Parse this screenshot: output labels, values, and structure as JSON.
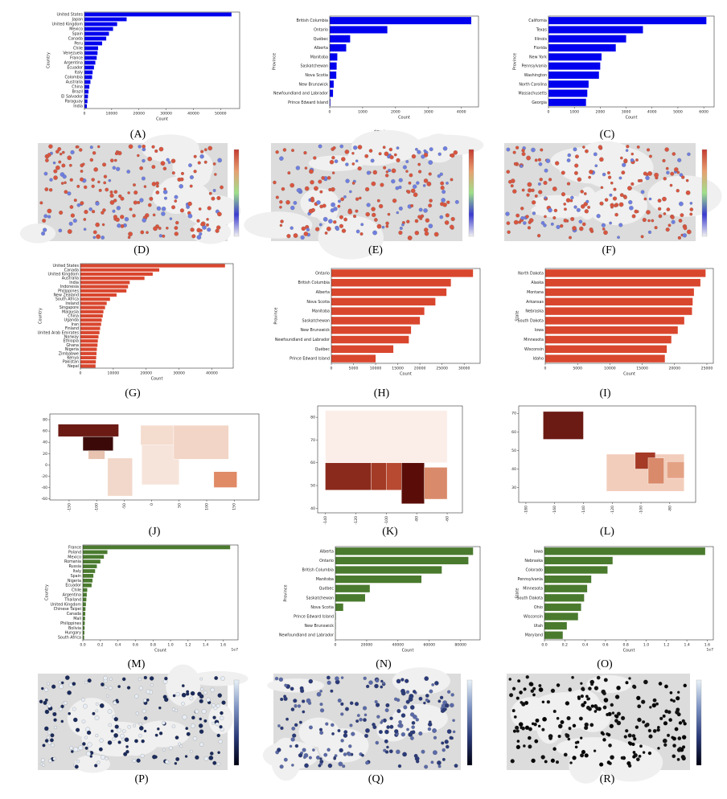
{
  "chart_data": [
    {
      "type": "bar",
      "caption": "(A)",
      "xlabel": "Count",
      "ylabel": "Country",
      "color": "#0000ee",
      "categories": [
        "United States",
        "Japan",
        "United Kingdom",
        "Mexico",
        "Spain",
        "Canada",
        "Peru",
        "Chile",
        "Venezuela",
        "France",
        "Argentina",
        "Ecuador",
        "Italy",
        "Colombia",
        "Australia",
        "China",
        "Brazil",
        "El Salvador",
        "Paraguay",
        "India"
      ],
      "values": [
        54000,
        15500,
        12000,
        10500,
        9000,
        8000,
        6500,
        5000,
        4800,
        4500,
        4000,
        3500,
        3000,
        2800,
        2200,
        1800,
        1500,
        1300,
        1100,
        900
      ],
      "xlim": [
        0,
        57000
      ],
      "xticks": [
        0,
        10000,
        20000,
        30000,
        40000,
        50000
      ]
    },
    {
      "type": "bar",
      "caption": "(B)",
      "xlabel": "Count",
      "ylabel": "Province",
      "color": "#0000ee",
      "categories": [
        "British Columbia",
        "Ontario",
        "Québec",
        "Alberta",
        "Manitoba",
        "Saskatchewan",
        "Nova Scotia",
        "New Brunswick",
        "Newfoundland and Labrador",
        "Prince Edward Island"
      ],
      "values": [
        4300,
        1750,
        620,
        500,
        230,
        210,
        200,
        120,
        100,
        20
      ],
      "xlim": [
        0,
        4520
      ],
      "xticks": [
        0,
        1000,
        2000,
        3000,
        4000
      ]
    },
    {
      "type": "bar",
      "caption": "(C)",
      "xlabel": "Count",
      "ylabel": "Province",
      "color": "#0000ee",
      "categories": [
        "California",
        "Texas",
        "Illinois",
        "Florida",
        "New York",
        "Pennsylvania",
        "Washington",
        "North Carolina",
        "Massachusetts",
        "Georgia"
      ],
      "values": [
        6100,
        3650,
        3000,
        2600,
        2050,
        2000,
        1950,
        1550,
        1500,
        1450
      ],
      "xlim": [
        0,
        6400
      ],
      "xticks": [
        0,
        1000,
        2000,
        3000,
        4000,
        5000,
        6000
      ]
    },
    {
      "type": "map",
      "caption": "(D)",
      "dot_colors": [
        "#d9553f",
        "#d9553f",
        "#d9553f",
        "#6f7fe0"
      ],
      "colorbar_colors": [
        "#f2f2f2",
        "#3a3ad0",
        "#9ee08a",
        "#e8a070",
        "#c43b30"
      ]
    },
    {
      "type": "map",
      "caption": "(E)",
      "dot_colors": [
        "#d9553f",
        "#d9553f",
        "#6f7fe0"
      ],
      "colorbar_colors": [
        "#f2f2f2",
        "#3a3ad0",
        "#9ee08a",
        "#e8a070",
        "#c43b30"
      ]
    },
    {
      "type": "map",
      "caption": "(F)",
      "dot_colors": [
        "#d9553f",
        "#d9553f",
        "#d9553f",
        "#6f7fe0"
      ],
      "colorbar_colors": [
        "#f2f2f2",
        "#3a3ad0",
        "#9ee08a",
        "#e8a070",
        "#c43b30"
      ]
    },
    {
      "type": "bar",
      "caption": "(G)",
      "xlabel": "Count",
      "ylabel": "Country",
      "color": "#d9462e",
      "categories": [
        "United States",
        "Canada",
        "United Kingdom",
        "Australia",
        "India",
        "Indonesia",
        "Philippines",
        "New Zealand",
        "South Africa",
        "Ireland",
        "Singapore",
        "Malaysia",
        "China",
        "Uganda",
        "Iran",
        "Finland",
        "United Arab Emirates",
        "Norway",
        "Ethiopia",
        "Ghana",
        "Nigeria",
        "Zimbabwe",
        "Kenya",
        "Pakistan",
        "Nepal"
      ],
      "values": [
        44000,
        24000,
        22000,
        19500,
        15000,
        14500,
        14000,
        11000,
        9000,
        8000,
        7500,
        7000,
        6800,
        6500,
        6300,
        6000,
        5800,
        5500,
        5300,
        5200,
        5000,
        4900,
        4800,
        4700,
        4600
      ],
      "xlim": [
        0,
        46500
      ],
      "xticks": [
        0,
        10000,
        20000,
        30000,
        40000
      ]
    },
    {
      "type": "bar",
      "caption": "(H)",
      "xlabel": "Count",
      "ylabel": "Province",
      "color": "#d9462e",
      "categories": [
        "Ontario",
        "British Columbia",
        "Alberta",
        "Nova Scotia",
        "Manitoba",
        "Saskatchewan",
        "New Brunswick",
        "Newfoundland and Labrador",
        "Québec",
        "Prince Edward Island"
      ],
      "values": [
        32000,
        27000,
        26000,
        23500,
        21000,
        20000,
        18000,
        17500,
        14000,
        10000
      ],
      "xlim": [
        0,
        33600
      ],
      "xticks": [
        0,
        5000,
        10000,
        15000,
        20000,
        25000,
        30000
      ]
    },
    {
      "type": "bar",
      "caption": "(I)",
      "xlabel": "Count",
      "ylabel": "State",
      "color": "#d9462e",
      "categories": [
        "North Dakota",
        "Alaska",
        "Montana",
        "Arkansas",
        "Nebraska",
        "South Dakota",
        "Iowa",
        "Minnesota",
        "Wisconsin",
        "Idaho"
      ],
      "values": [
        24800,
        24000,
        23000,
        22800,
        22700,
        21500,
        20500,
        19500,
        18800,
        18500
      ],
      "xlim": [
        0,
        26000
      ],
      "xticks": [
        0,
        5000,
        10000,
        15000,
        20000,
        25000
      ]
    },
    {
      "type": "choropleth",
      "caption": "(J)",
      "xlim": [
        -185,
        195
      ],
      "ylim": [
        -62,
        90
      ],
      "xticks": [
        -150,
        -100,
        -50,
        0,
        50,
        100,
        150
      ],
      "yticks": [
        -60,
        -40,
        -20,
        0,
        20,
        40,
        60,
        80
      ]
    },
    {
      "type": "choropleth",
      "caption": "(K)",
      "xlim": [
        -145,
        -50
      ],
      "ylim": [
        38,
        85
      ],
      "xticks": [
        -140,
        -120,
        -100,
        -80,
        -60
      ],
      "yticks": [
        40,
        50,
        60,
        70,
        80
      ]
    },
    {
      "type": "choropleth",
      "caption": "(L)",
      "xlim": [
        -185,
        -62
      ],
      "ylim": [
        22,
        74
      ],
      "xticks": [
        -180,
        -160,
        -140,
        -120,
        -100,
        -80
      ],
      "yticks": [
        30,
        40,
        50,
        60,
        70
      ]
    },
    {
      "type": "bar",
      "caption": "(M)",
      "xlabel": "Count",
      "ylabel": "Country",
      "color": "#4a7a2e",
      "offset_text": "1e7",
      "categories": [
        "France",
        "Poland",
        "Mexico",
        "Romania",
        "Russia",
        "Italy",
        "Spain",
        "Nigeria",
        "Ecuador",
        "Chile",
        "Argentina",
        "Thailand",
        "United Kingdom",
        "Chinese Taipei",
        "Canada",
        "Mali",
        "Philippines",
        "Bolivia",
        "Hungary",
        "South Africa"
      ],
      "values": [
        16800000,
        2800000,
        2400000,
        2000000,
        1600000,
        1400000,
        1200000,
        1100000,
        1000000,
        500000,
        450000,
        400000,
        350000,
        300000,
        280000,
        250000,
        220000,
        200000,
        180000,
        150000
      ],
      "xlim": [
        0,
        17700000
      ],
      "xticks": [
        {
          "value": 0,
          "label": "0.0"
        },
        {
          "value": 2000000,
          "label": "0.2"
        },
        {
          "value": 4000000,
          "label": "0.4"
        },
        {
          "value": 6000000,
          "label": "0.6"
        },
        {
          "value": 8000000,
          "label": "0.8"
        },
        {
          "value": 10000000,
          "label": "1.0"
        },
        {
          "value": 12000000,
          "label": "1.2"
        },
        {
          "value": 14000000,
          "label": "1.4"
        },
        {
          "value": 16000000,
          "label": "1.6"
        }
      ]
    },
    {
      "type": "bar",
      "caption": "(N)",
      "xlabel": "Count",
      "ylabel": "Province",
      "color": "#4a7a2e",
      "categories": [
        "Alberta",
        "Ontario",
        "British Columbia",
        "Manitoba",
        "Québec",
        "Saskatchewan",
        "Nova Scotia",
        "Prince Edward Island",
        "New Brunswick",
        "Newfoundland and Labrador"
      ],
      "values": [
        88000,
        85000,
        68000,
        55000,
        22000,
        19000,
        5000,
        300,
        200,
        100
      ],
      "xlim": [
        0,
        92500
      ],
      "xticks": [
        0,
        20000,
        40000,
        60000,
        80000
      ]
    },
    {
      "type": "bar",
      "caption": "(O)",
      "xlabel": "Count",
      "ylabel": "State",
      "color": "#4a7a2e",
      "offset_text": "1e7",
      "categories": [
        "Iowa",
        "Nebraska",
        "Colorado",
        "Pennsylvania",
        "Minnesota",
        "South Dakota",
        "Ohio",
        "Wisconsin",
        "Utah",
        "Maryland"
      ],
      "values": [
        15800000,
        6700000,
        6200000,
        4600000,
        4200000,
        3900000,
        3600000,
        3300000,
        2200000,
        1800000
      ],
      "xlim": [
        0,
        16600000
      ],
      "xticks": [
        {
          "value": 0,
          "label": "0.0"
        },
        {
          "value": 2000000,
          "label": "0.2"
        },
        {
          "value": 4000000,
          "label": "0.4"
        },
        {
          "value": 6000000,
          "label": "0.6"
        },
        {
          "value": 8000000,
          "label": "0.8"
        },
        {
          "value": 10000000,
          "label": "1.0"
        },
        {
          "value": 12000000,
          "label": "1.2"
        },
        {
          "value": 14000000,
          "label": "1.4"
        },
        {
          "value": 16000000,
          "label": "1.6"
        }
      ]
    },
    {
      "type": "map",
      "caption": "(P)",
      "dot_colors": [
        "#1a2a5a",
        "#e8eef6"
      ],
      "colorbar_colors": [
        "#000010",
        "#2a3a78",
        "#7a90c0",
        "#e8f2f8"
      ]
    },
    {
      "type": "map",
      "caption": "(Q)",
      "dot_colors": [
        "#2a3a78",
        "#5a6aa8"
      ],
      "colorbar_colors": [
        "#000010",
        "#2a3a78",
        "#7a90c0",
        "#e8f2f8"
      ]
    },
    {
      "type": "map",
      "caption": "(R)",
      "dot_colors": [
        "#000000",
        "#111111"
      ],
      "colorbar_colors": [
        "#000010",
        "#2a3a78",
        "#7a90c0",
        "#e8f2f8"
      ]
    }
  ]
}
